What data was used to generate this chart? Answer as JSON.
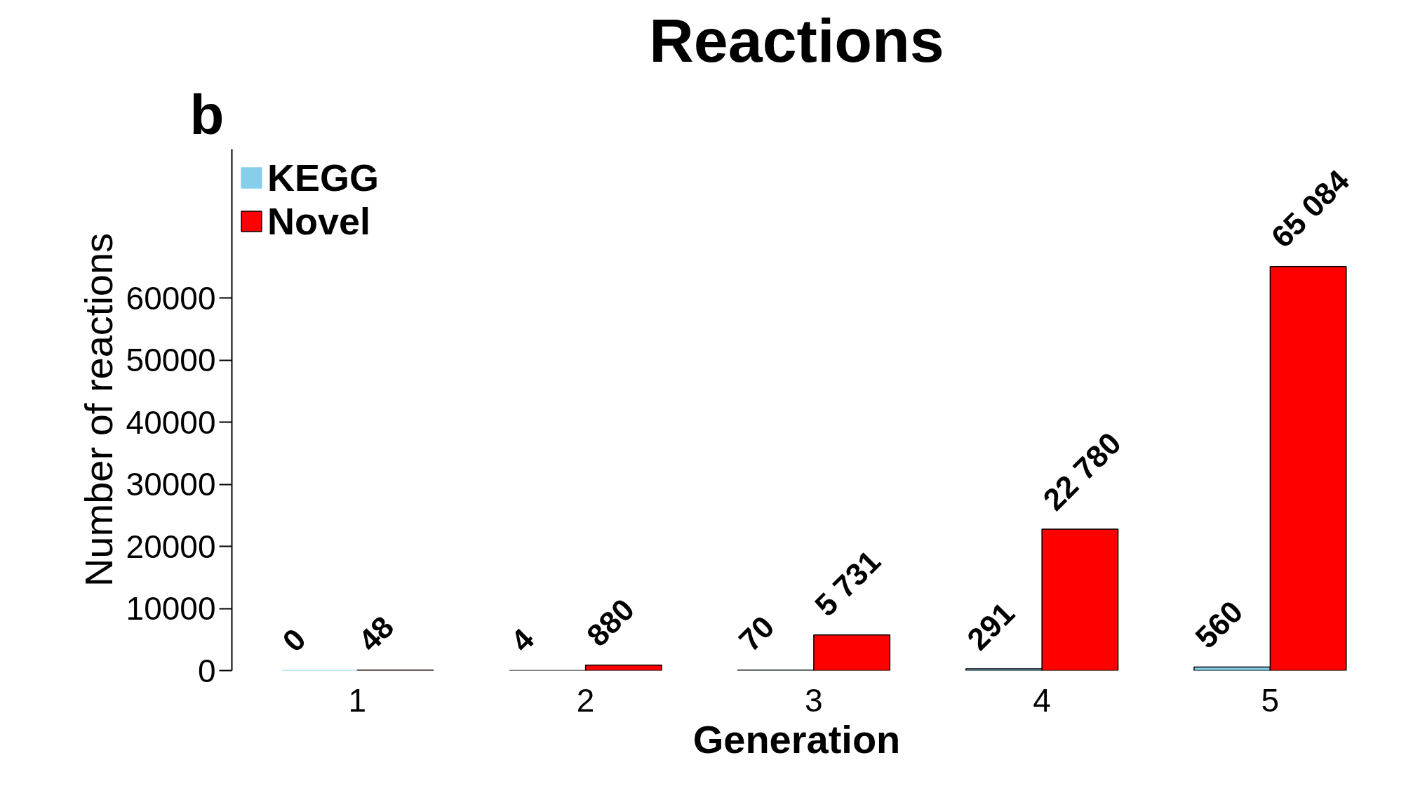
{
  "chart_data": {
    "type": "bar",
    "title": "Reactions",
    "xlabel": "Generation",
    "ylabel": "Number of reactions",
    "annotations": [
      "b"
    ],
    "categories": [
      "1",
      "2",
      "3",
      "4",
      "5"
    ],
    "series": [
      {
        "name": "KEGG",
        "color": "#87ceeb",
        "values": [
          0,
          4,
          70,
          291,
          560
        ],
        "value_labels": [
          "0",
          "4",
          "70",
          "291",
          "560"
        ]
      },
      {
        "name": "Novel",
        "color": "#ff0000",
        "values": [
          48,
          880,
          5731,
          22780,
          65084
        ],
        "value_labels": [
          "48",
          "880",
          "5 731",
          "22 780",
          "65 084"
        ]
      }
    ],
    "ylim": [
      0,
      84000
    ],
    "yticks": [
      0,
      10000,
      20000,
      30000,
      40000,
      50000,
      60000
    ],
    "grid": false,
    "legend": "top left"
  }
}
